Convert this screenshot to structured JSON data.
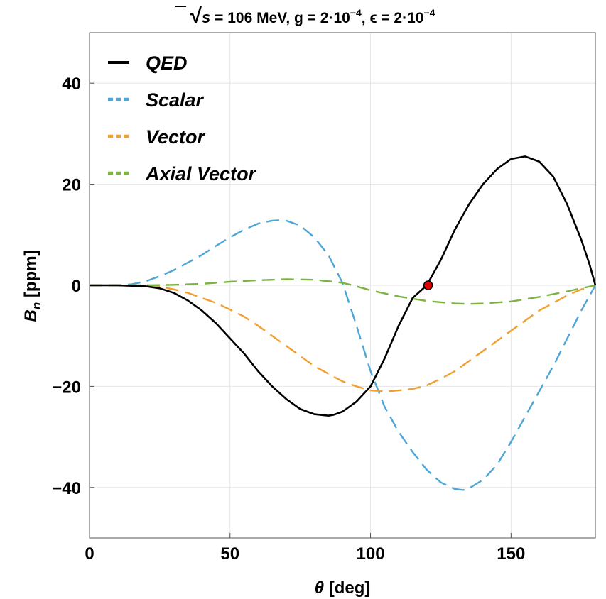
{
  "chart_data": {
    "type": "line",
    "title": {
      "sqrt_symbol": "√",
      "sqrt_arg": "s",
      "energy_part": " = 106 MeV, g = 2·10",
      "g_exp": "−4",
      "eps_part": ", ϵ = 2·10",
      "eps_exp": "−4"
    },
    "xlabel": {
      "symbol": "θ",
      "text": " [deg]"
    },
    "ylabel": {
      "symbol": "B",
      "subscript": "n",
      "text": " [ppm]"
    },
    "xlim": [
      0,
      180
    ],
    "ylim": [
      -50,
      50
    ],
    "x_ticks": [
      0,
      50,
      100,
      150
    ],
    "y_ticks": [
      -40,
      -20,
      0,
      20,
      40
    ],
    "x_tick_labels": [
      "0",
      "50",
      "100",
      "150"
    ],
    "y_tick_labels": [
      "−40",
      "−20",
      "0",
      "20",
      "40"
    ],
    "grid": true,
    "legend_position": "top-left",
    "series": [
      {
        "name": "QED",
        "color": "#000000",
        "dash": "solid",
        "x": [
          0,
          10,
          20,
          25,
          30,
          35,
          40,
          45,
          50,
          55,
          60,
          65,
          70,
          75,
          80,
          85,
          87,
          90,
          95,
          100,
          105,
          110,
          115,
          120,
          125,
          130,
          135,
          140,
          145,
          150,
          155,
          160,
          165,
          170,
          175,
          178,
          180
        ],
        "y": [
          0,
          0,
          -0.2,
          -0.6,
          -1.5,
          -3,
          -5,
          -7.5,
          -10.5,
          -13.5,
          -17,
          -20,
          -22.5,
          -24.5,
          -25.5,
          -25.8,
          -25.6,
          -25,
          -23,
          -20,
          -14.5,
          -8,
          -2.5,
          0,
          5,
          11,
          16,
          20,
          23,
          25,
          25.5,
          24.5,
          21.5,
          16,
          9,
          4,
          0
        ]
      },
      {
        "name": "Scalar",
        "color": "#4ea6d6",
        "dash": "dashed",
        "x": [
          0,
          10,
          15,
          20,
          25,
          30,
          35,
          40,
          45,
          50,
          55,
          60,
          65,
          68,
          70,
          75,
          80,
          85,
          90,
          95,
          100,
          105,
          110,
          115,
          120,
          125,
          130,
          133,
          135,
          140,
          145,
          150,
          155,
          160,
          165,
          170,
          175,
          180
        ],
        "y": [
          0,
          0,
          0.2,
          0.8,
          1.8,
          3,
          4.5,
          6,
          7.8,
          9.5,
          11,
          12.2,
          12.8,
          12.9,
          12.8,
          11.8,
          9.5,
          6,
          0.5,
          -8,
          -17,
          -24,
          -29,
          -33,
          -36.5,
          -39,
          -40.3,
          -40.5,
          -40.2,
          -38.5,
          -35.5,
          -31,
          -26,
          -21,
          -16,
          -10.5,
          -5,
          0
        ]
      },
      {
        "name": "Vector",
        "color": "#f0a030",
        "dash": "dashed",
        "x": [
          0,
          10,
          20,
          25,
          30,
          35,
          40,
          45,
          50,
          55,
          60,
          65,
          70,
          75,
          80,
          85,
          90,
          95,
          100,
          105,
          108,
          110,
          115,
          120,
          125,
          130,
          135,
          140,
          145,
          150,
          155,
          160,
          165,
          170,
          175,
          180
        ],
        "y": [
          0,
          0,
          -0.1,
          -0.3,
          -0.8,
          -1.5,
          -2.5,
          -3.5,
          -4.8,
          -6.2,
          -8,
          -10,
          -12,
          -14,
          -16,
          -17.5,
          -19,
          -20,
          -20.8,
          -21,
          -20.9,
          -20.8,
          -20.5,
          -19.8,
          -18.5,
          -17,
          -15,
          -13,
          -11,
          -9,
          -7,
          -5,
          -3.5,
          -2,
          -0.8,
          0
        ]
      },
      {
        "name": "Axial Vector",
        "color": "#7cb342",
        "dash": "dashed",
        "x": [
          0,
          10,
          20,
          30,
          40,
          50,
          60,
          70,
          80,
          90,
          95,
          100,
          110,
          120,
          130,
          135,
          140,
          150,
          160,
          170,
          180
        ],
        "y": [
          0,
          0,
          0,
          0.1,
          0.3,
          0.7,
          1,
          1.2,
          1.1,
          0.5,
          -0.2,
          -1,
          -2.2,
          -3.1,
          -3.6,
          -3.7,
          -3.6,
          -3.2,
          -2.3,
          -1.2,
          0
        ]
      }
    ],
    "annotations": [
      {
        "type": "point",
        "x": 120.5,
        "y": 0,
        "color": "#e00000"
      }
    ]
  }
}
